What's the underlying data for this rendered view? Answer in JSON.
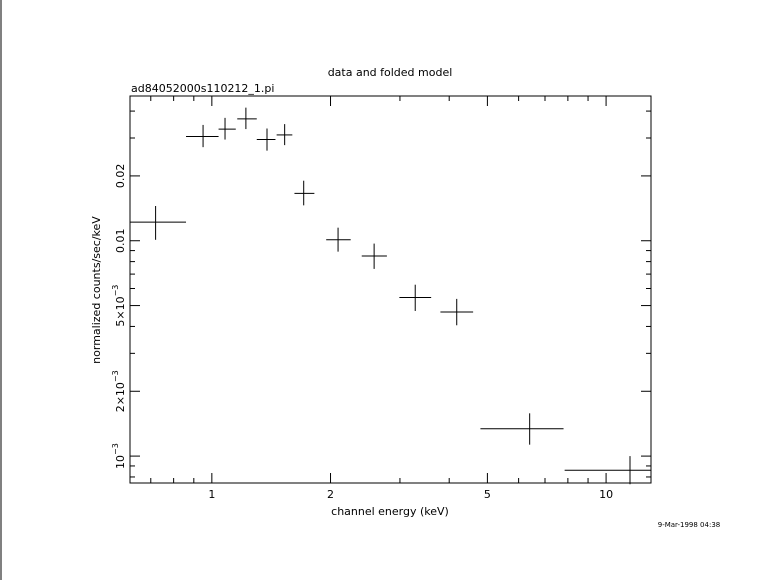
{
  "title": "data and folded model",
  "subtitle": "ad84052000s110212_1.pi",
  "timestamp": "9-Mar-1998 04:38",
  "chart_data": {
    "type": "scatter",
    "xlabel": "channel energy (keV)",
    "ylabel": "normalized counts/sec/keV",
    "xscale": "log",
    "yscale": "log",
    "xlim": [
      0.62,
      13.0
    ],
    "ylim": [
      0.00075,
      0.047
    ],
    "grid": false,
    "x_ticks": [
      {
        "value": 1,
        "label": "1"
      },
      {
        "value": 2,
        "label": "2"
      },
      {
        "value": 5,
        "label": "5"
      },
      {
        "value": 10,
        "label": "10"
      }
    ],
    "y_ticks": [
      {
        "value": 0.001,
        "mant": "10",
        "exp": "−3"
      },
      {
        "value": 0.002,
        "mant": "2×10",
        "exp": "−3"
      },
      {
        "value": 0.005,
        "mant": "5×10",
        "exp": "−3"
      },
      {
        "value": 0.01,
        "mant": "0.01",
        "exp": ""
      },
      {
        "value": 0.02,
        "mant": "0.02",
        "exp": ""
      }
    ],
    "points": [
      {
        "x": 0.72,
        "xlo": 0.62,
        "xhi": 0.86,
        "y": 0.0122,
        "ylo": 0.0101,
        "yhi": 0.0145
      },
      {
        "x": 0.95,
        "xlo": 0.86,
        "xhi": 1.04,
        "y": 0.0305,
        "ylo": 0.0272,
        "yhi": 0.0345
      },
      {
        "x": 1.08,
        "xlo": 1.04,
        "xhi": 1.15,
        "y": 0.033,
        "ylo": 0.0295,
        "yhi": 0.0372
      },
      {
        "x": 1.22,
        "xlo": 1.16,
        "xhi": 1.3,
        "y": 0.0368,
        "ylo": 0.033,
        "yhi": 0.0415
      },
      {
        "x": 1.38,
        "xlo": 1.3,
        "xhi": 1.45,
        "y": 0.0295,
        "ylo": 0.0262,
        "yhi": 0.0332
      },
      {
        "x": 1.53,
        "xlo": 1.46,
        "xhi": 1.6,
        "y": 0.031,
        "ylo": 0.0278,
        "yhi": 0.0348
      },
      {
        "x": 1.71,
        "xlo": 1.62,
        "xhi": 1.82,
        "y": 0.0166,
        "ylo": 0.0146,
        "yhi": 0.019
      },
      {
        "x": 2.09,
        "xlo": 1.95,
        "xhi": 2.25,
        "y": 0.0101,
        "ylo": 0.0089,
        "yhi": 0.0115
      },
      {
        "x": 2.58,
        "xlo": 2.4,
        "xhi": 2.78,
        "y": 0.0085,
        "ylo": 0.0074,
        "yhi": 0.0097
      },
      {
        "x": 3.28,
        "xlo": 2.99,
        "xhi": 3.6,
        "y": 0.00545,
        "ylo": 0.00472,
        "yhi": 0.00625
      },
      {
        "x": 4.18,
        "xlo": 3.8,
        "xhi": 4.6,
        "y": 0.00467,
        "ylo": 0.00405,
        "yhi": 0.00537
      },
      {
        "x": 6.4,
        "xlo": 4.8,
        "xhi": 7.8,
        "y": 0.00134,
        "ylo": 0.00113,
        "yhi": 0.00158
      },
      {
        "x": 11.5,
        "xlo": 7.85,
        "xhi": 13.0,
        "y": 0.00086,
        "ylo": 0.00074,
        "yhi": 0.001
      }
    ]
  }
}
